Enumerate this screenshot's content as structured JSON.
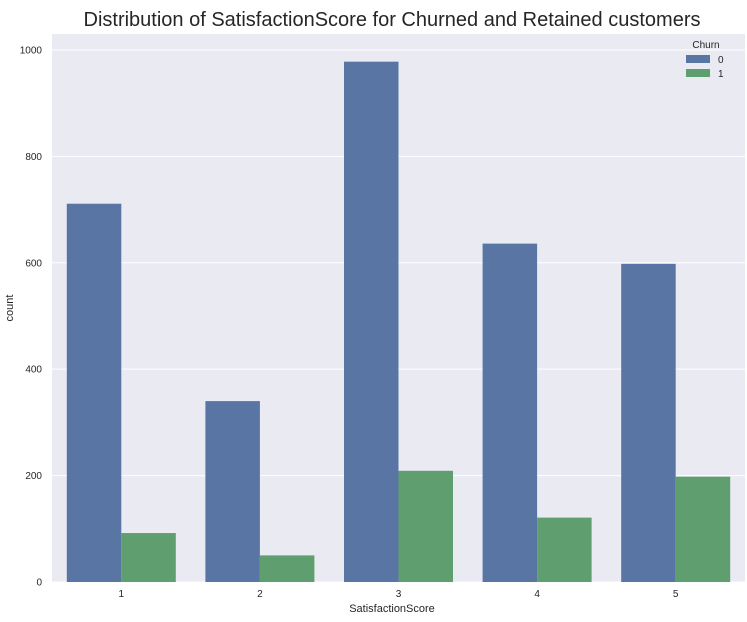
{
  "chart_data": {
    "type": "bar",
    "title": "Distribution of SatisfactionScore for Churned and Retained customers",
    "xlabel": "SatisfactionScore",
    "ylabel": "count",
    "categories": [
      "1",
      "2",
      "3",
      "4",
      "5"
    ],
    "series": [
      {
        "name": "0",
        "values": [
          711,
          340,
          978,
          636,
          598
        ],
        "color": "#5875A4"
      },
      {
        "name": "1",
        "values": [
          92,
          50,
          209,
          121,
          198
        ],
        "color": "#5F9E6E"
      }
    ],
    "ylim": [
      0,
      1030
    ],
    "yticks": [
      0,
      200,
      400,
      600,
      800,
      1000
    ],
    "grid": true,
    "legend": {
      "title": "Churn",
      "position": "top-right"
    },
    "background_color": "#EAEAF2"
  }
}
